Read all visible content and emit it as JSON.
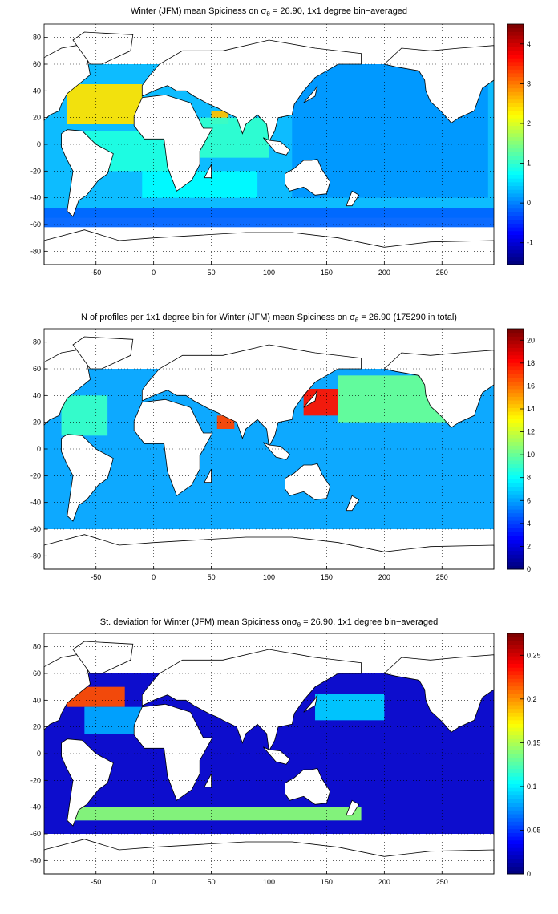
{
  "chart_data": [
    {
      "type": "heatmap",
      "id": "panel-mean",
      "title_parts": {
        "pre": "Winter (JFM) mean Spiciness on ",
        "sym": "σ",
        "sub": "θ",
        "post": " = 26.90, 1x1 degree bin−averaged"
      },
      "x_ticks": [
        -50,
        0,
        50,
        100,
        150,
        200,
        250
      ],
      "y_ticks": [
        80,
        60,
        40,
        20,
        0,
        -20,
        -40,
        -60,
        -80
      ],
      "xlim": [
        -95,
        295
      ],
      "ylim": [
        -90,
        90
      ],
      "grid": true,
      "colorbar": {
        "ticks": [
          4,
          3,
          2,
          1,
          0,
          -1
        ],
        "range": [
          -1.55,
          4.5
        ]
      },
      "regions": [
        {
          "lon": [
            -95,
            295
          ],
          "lat": [
            -55,
            60
          ],
          "value": 0.3
        },
        {
          "lon": [
            -75,
            -10
          ],
          "lat": [
            15,
            45
          ],
          "value": 2.4
        },
        {
          "lon": [
            50,
            65
          ],
          "lat": [
            15,
            25
          ],
          "value": 2.6
        },
        {
          "lon": [
            -60,
            20
          ],
          "lat": [
            -20,
            10
          ],
          "value": 0.9
        },
        {
          "lon": [
            40,
            100
          ],
          "lat": [
            -10,
            20
          ],
          "value": 1.0
        },
        {
          "lon": [
            120,
            290
          ],
          "lat": [
            -40,
            60
          ],
          "value": 0.1
        },
        {
          "lon": [
            -95,
            295
          ],
          "lat": [
            -62,
            -48
          ],
          "value": -0.2
        },
        {
          "lon": [
            -10,
            90
          ],
          "lat": [
            -40,
            -20
          ],
          "value": 0.7
        }
      ]
    },
    {
      "type": "heatmap",
      "id": "panel-count",
      "title_parts": {
        "pre": "N of profiles per 1x1 degree bin for Winter (JFM) mean Spiciness on ",
        "sym": "σ",
        "sub": "θ",
        "post": " = 26.90 (175290 in total)"
      },
      "x_ticks": [
        -50,
        0,
        50,
        100,
        150,
        200,
        250
      ],
      "y_ticks": [
        80,
        60,
        40,
        20,
        0,
        -20,
        -40,
        -60,
        -80
      ],
      "xlim": [
        -95,
        295
      ],
      "ylim": [
        -90,
        90
      ],
      "grid": true,
      "colorbar": {
        "ticks": [
          20,
          18,
          16,
          14,
          12,
          10,
          8,
          6,
          4,
          2,
          0
        ],
        "range": [
          0,
          21
        ]
      },
      "regions": [
        {
          "lon": [
            -95,
            295
          ],
          "lat": [
            -60,
            60
          ],
          "value": 6
        },
        {
          "lon": [
            130,
            160
          ],
          "lat": [
            25,
            45
          ],
          "value": 18
        },
        {
          "lon": [
            55,
            70
          ],
          "lat": [
            15,
            25
          ],
          "value": 17
        },
        {
          "lon": [
            160,
            260
          ],
          "lat": [
            20,
            55
          ],
          "value": 10
        },
        {
          "lon": [
            -80,
            -40
          ],
          "lat": [
            10,
            40
          ],
          "value": 9
        }
      ]
    },
    {
      "type": "heatmap",
      "id": "panel-std",
      "title_parts": {
        "pre": "St. deviation for Winter (JFM) mean Spiciness on",
        "sym": "σ",
        "sub": "θ",
        "post": " = 26.90, 1x1 degree bin−averaged"
      },
      "x_ticks": [
        -50,
        0,
        50,
        100,
        150,
        200,
        250
      ],
      "y_ticks": [
        80,
        60,
        40,
        20,
        0,
        -20,
        -40,
        -60,
        -80
      ],
      "xlim": [
        -95,
        295
      ],
      "ylim": [
        -90,
        90
      ],
      "grid": true,
      "colorbar": {
        "ticks": [
          0.25,
          0.2,
          0.15,
          0.1,
          0.05,
          0
        ],
        "range": [
          0,
          0.275
        ]
      },
      "regions": [
        {
          "lon": [
            -95,
            295
          ],
          "lat": [
            -60,
            60
          ],
          "value": 0.02
        },
        {
          "lon": [
            -75,
            -25
          ],
          "lat": [
            35,
            50
          ],
          "value": 0.22
        },
        {
          "lon": [
            -60,
            0
          ],
          "lat": [
            15,
            35
          ],
          "value": 0.08
        },
        {
          "lon": [
            140,
            200
          ],
          "lat": [
            25,
            45
          ],
          "value": 0.09
        },
        {
          "lon": [
            -70,
            180
          ],
          "lat": [
            -50,
            -40
          ],
          "value": 0.14
        }
      ]
    }
  ]
}
